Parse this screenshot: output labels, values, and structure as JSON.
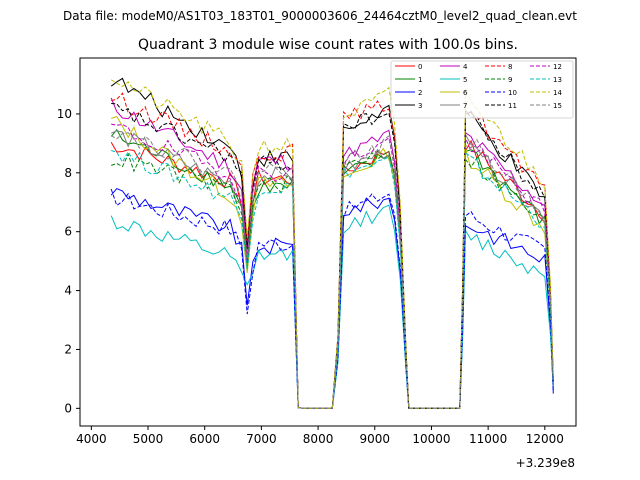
{
  "figure": {
    "suptitle": "Data file: modeM0/AS1T03_183T01_9000003606_24464cztM0_level2_quad_clean.evt",
    "title": "Quadrant 3 module wise count rates with 100.0s bins.",
    "x_offset_label": "+3.239e8"
  },
  "chart_data": {
    "type": "line",
    "title": "Quadrant 3 module wise count rates with 100.0s bins.",
    "xlabel": "",
    "ylabel": "",
    "x_offset": "+3.239e8",
    "xlim": [
      3800,
      12550
    ],
    "ylim": [
      -0.6,
      11.9
    ],
    "xticks": [
      4000,
      5000,
      6000,
      7000,
      8000,
      9000,
      10000,
      11000,
      12000
    ],
    "xtick_labels": [
      "4000",
      "5000",
      "6000",
      "7000",
      "8000",
      "9000",
      "10000",
      "11000",
      "12000"
    ],
    "yticks": [
      0,
      2,
      4,
      6,
      8,
      10
    ],
    "ytick_labels": [
      "0",
      "2",
      "4",
      "6",
      "8",
      "10"
    ],
    "grid": false,
    "legend_position": "top-right",
    "segments": [
      {
        "start": 4350,
        "end": 6650,
        "trend": "decline"
      },
      {
        "start": 6750,
        "end": 6750,
        "trend": "dip"
      },
      {
        "start": 6850,
        "end": 7550,
        "trend": "flat"
      },
      {
        "start": 7650,
        "end": 8250,
        "trend": "zero"
      },
      {
        "start": 8350,
        "end": 9250,
        "trend": "rise"
      },
      {
        "start": 9350,
        "end": 9550,
        "trend": "fall"
      },
      {
        "start": 9600,
        "end": 10500,
        "trend": "zero"
      },
      {
        "start": 10550,
        "end": 12150,
        "trend": "decline"
      }
    ],
    "series": [
      {
        "name": "0",
        "color": "#ff0000",
        "dash": "solid",
        "start": 9.0,
        "end": 7.6,
        "dip": 5.0,
        "plateau": 7.8,
        "rise_start": 8.0,
        "rise_end": 8.8,
        "seg3_start": 9.0,
        "seg3_end": 6.5,
        "final": 1.0
      },
      {
        "name": "1",
        "color": "#008000",
        "dash": "solid",
        "start": 9.3,
        "end": 7.4,
        "dip": 4.8,
        "plateau": 7.5,
        "rise_start": 7.9,
        "rise_end": 8.6,
        "seg3_start": 8.9,
        "seg3_end": 6.2,
        "final": 0.9
      },
      {
        "name": "2",
        "color": "#0000ff",
        "dash": "solid",
        "start": 7.4,
        "end": 6.0,
        "dip": 3.5,
        "plateau": 5.5,
        "rise_start": 6.7,
        "rise_end": 7.1,
        "seg3_start": 6.3,
        "seg3_end": 5.0,
        "final": 0.5
      },
      {
        "name": "3",
        "color": "#000000",
        "dash": "solid",
        "start": 11.2,
        "end": 8.6,
        "dip": 5.5,
        "plateau": 8.5,
        "rise_start": 9.4,
        "rise_end": 10.2,
        "seg3_start": 10.0,
        "seg3_end": 7.0,
        "final": 0.8
      },
      {
        "name": "4",
        "color": "#bf00bf",
        "dash": "solid",
        "start": 10.3,
        "end": 8.0,
        "dip": 5.1,
        "plateau": 8.4,
        "rise_start": 8.6,
        "rise_end": 9.3,
        "seg3_start": 9.3,
        "seg3_end": 6.8,
        "final": 0.9
      },
      {
        "name": "5",
        "color": "#00bfbf",
        "dash": "solid",
        "start": 6.4,
        "end": 5.0,
        "dip": 4.2,
        "plateau": 5.2,
        "rise_start": 6.2,
        "rise_end": 6.7,
        "seg3_start": 5.9,
        "seg3_end": 4.5,
        "final": 0.7
      },
      {
        "name": "6",
        "color": "#bfbf00",
        "dash": "solid",
        "start": 9.8,
        "end": 7.0,
        "dip": 4.6,
        "plateau": 7.6,
        "rise_start": 7.8,
        "rise_end": 8.7,
        "seg3_start": 8.6,
        "seg3_end": 6.0,
        "final": 0.8
      },
      {
        "name": "7",
        "color": "#808080",
        "dash": "solid",
        "start": 9.4,
        "end": 7.5,
        "dip": 4.9,
        "plateau": 7.9,
        "rise_start": 8.1,
        "rise_end": 8.8,
        "seg3_start": 9.0,
        "seg3_end": 6.4,
        "final": 0.9
      },
      {
        "name": "8",
        "color": "#ff0000",
        "dash": "dashed",
        "start": 10.6,
        "end": 8.6,
        "dip": 5.6,
        "plateau": 8.7,
        "rise_start": 9.9,
        "rise_end": 10.3,
        "seg3_start": 10.3,
        "seg3_end": 7.2,
        "final": 1.0
      },
      {
        "name": "9",
        "color": "#008000",
        "dash": "dashed",
        "start": 8.5,
        "end": 7.4,
        "dip": 4.8,
        "plateau": 7.6,
        "rise_start": 8.2,
        "rise_end": 8.8,
        "seg3_start": 8.6,
        "seg3_end": 6.2,
        "final": 0.9
      },
      {
        "name": "10",
        "color": "#0000ff",
        "dash": "dashed",
        "start": 7.2,
        "end": 6.0,
        "dip": 3.2,
        "plateau": 5.6,
        "rise_start": 6.7,
        "rise_end": 7.3,
        "seg3_start": 6.6,
        "seg3_end": 5.3,
        "final": 0.6
      },
      {
        "name": "11",
        "color": "#000000",
        "dash": "dashed",
        "start": 10.2,
        "end": 8.4,
        "dip": 5.4,
        "plateau": 8.3,
        "rise_start": 9.6,
        "rise_end": 10.0,
        "seg3_start": 10.1,
        "seg3_end": 7.0,
        "final": 0.8
      },
      {
        "name": "12",
        "color": "#bf00bf",
        "dash": "dashed",
        "start": 9.6,
        "end": 7.8,
        "dip": 5.0,
        "plateau": 8.0,
        "rise_start": 8.4,
        "rise_end": 9.1,
        "seg3_start": 9.1,
        "seg3_end": 6.6,
        "final": 0.9
      },
      {
        "name": "13",
        "color": "#00bfbf",
        "dash": "dashed",
        "start": 8.8,
        "end": 7.0,
        "dip": 4.7,
        "plateau": 7.5,
        "rise_start": 8.0,
        "rise_end": 8.4,
        "seg3_start": 8.5,
        "seg3_end": 6.2,
        "final": 0.8
      },
      {
        "name": "14",
        "color": "#bfbf00",
        "dash": "dashed",
        "start": 11.3,
        "end": 8.8,
        "dip": 5.8,
        "plateau": 8.9,
        "rise_start": 9.9,
        "rise_end": 10.7,
        "seg3_start": 10.6,
        "seg3_end": 7.6,
        "final": 1.0
      },
      {
        "name": "15",
        "color": "#808080",
        "dash": "dashed",
        "start": 9.5,
        "end": 7.8,
        "dip": 5.1,
        "plateau": 8.1,
        "rise_start": 8.4,
        "rise_end": 9.0,
        "seg3_start": 9.2,
        "seg3_end": 6.6,
        "final": 0.9
      }
    ]
  }
}
